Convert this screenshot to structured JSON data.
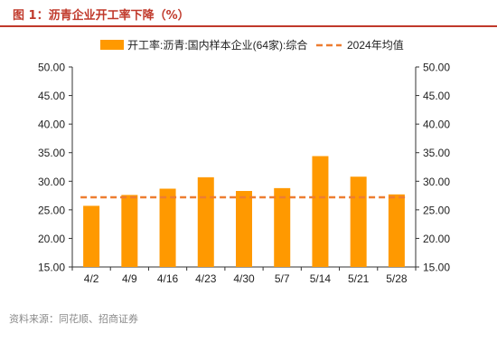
{
  "figure": {
    "title": "图 1：沥青企业开工率下降（%）",
    "source": "资料来源：同花顺、招商证券"
  },
  "chart_data": {
    "type": "bar",
    "categories": [
      "4/2",
      "4/9",
      "4/16",
      "4/23",
      "4/30",
      "5/7",
      "5/14",
      "5/21",
      "5/28"
    ],
    "series": [
      {
        "name": "开工率:沥青:国内样本企业(64家):综合",
        "type": "bar",
        "color": "#FF9900",
        "values": [
          25.7,
          27.6,
          28.7,
          30.7,
          28.3,
          28.8,
          34.4,
          30.8,
          27.7
        ]
      },
      {
        "name": "2024年均值",
        "type": "dashed-line",
        "color": "#ED7D31",
        "values": [
          27.2,
          27.2,
          27.2,
          27.2,
          27.2,
          27.2,
          27.2,
          27.2,
          27.2
        ]
      }
    ],
    "ylim": [
      15,
      50
    ],
    "yticks": [
      "15.00",
      "20.00",
      "25.00",
      "30.00",
      "35.00",
      "40.00",
      "45.00",
      "50.00"
    ],
    "xlabel": "",
    "ylabel": "",
    "legend_position": "top-center",
    "grid": false
  }
}
